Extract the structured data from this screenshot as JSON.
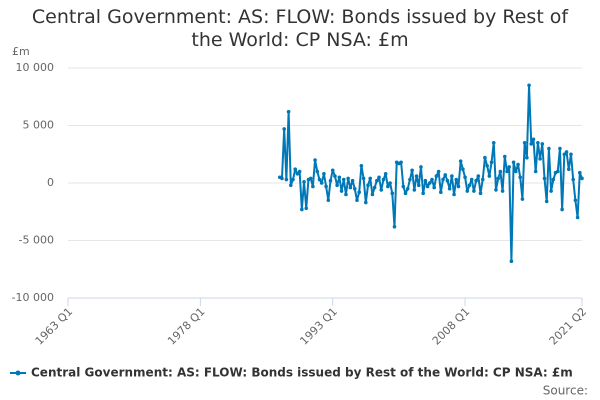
{
  "chart_data": {
    "type": "line",
    "title": "Central Government: AS: FLOW: Bonds issued by Rest of the World: CP NSA: £m",
    "y_label": "£m",
    "source": "Source:",
    "x": [
      "1987 Q1",
      "1987 Q2",
      "1987 Q3",
      "1987 Q4",
      "1988 Q1",
      "1988 Q2",
      "1988 Q3",
      "1988 Q4",
      "1989 Q1",
      "1989 Q2",
      "1989 Q3",
      "1989 Q4",
      "1990 Q1",
      "1990 Q2",
      "1990 Q3",
      "1990 Q4",
      "1991 Q1",
      "1991 Q2",
      "1991 Q3",
      "1991 Q4",
      "1992 Q1",
      "1992 Q2",
      "1992 Q3",
      "1992 Q4",
      "1993 Q1",
      "1993 Q2",
      "1993 Q3",
      "1993 Q4",
      "1994 Q1",
      "1994 Q2",
      "1994 Q3",
      "1994 Q4",
      "1995 Q1",
      "1995 Q2",
      "1995 Q3",
      "1995 Q4",
      "1996 Q1",
      "1996 Q2",
      "1996 Q3",
      "1996 Q4",
      "1997 Q1",
      "1997 Q2",
      "1997 Q3",
      "1997 Q4",
      "1998 Q1",
      "1998 Q2",
      "1998 Q3",
      "1998 Q4",
      "1999 Q1",
      "1999 Q2",
      "1999 Q3",
      "1999 Q4",
      "2000 Q1",
      "2000 Q2",
      "2000 Q3",
      "2000 Q4",
      "2001 Q1",
      "2001 Q2",
      "2001 Q3",
      "2001 Q4",
      "2002 Q1",
      "2002 Q2",
      "2002 Q3",
      "2002 Q4",
      "2003 Q1",
      "2003 Q2",
      "2003 Q3",
      "2003 Q4",
      "2004 Q1",
      "2004 Q2",
      "2004 Q3",
      "2004 Q4",
      "2005 Q1",
      "2005 Q2",
      "2005 Q3",
      "2005 Q4",
      "2006 Q1",
      "2006 Q2",
      "2006 Q3",
      "2006 Q4",
      "2007 Q1",
      "2007 Q2",
      "2007 Q3",
      "2007 Q4",
      "2008 Q1",
      "2008 Q2",
      "2008 Q3",
      "2008 Q4",
      "2009 Q1",
      "2009 Q2",
      "2009 Q3",
      "2009 Q4",
      "2010 Q1",
      "2010 Q2",
      "2010 Q3",
      "2010 Q4",
      "2011 Q1",
      "2011 Q2",
      "2011 Q3",
      "2011 Q4",
      "2012 Q1",
      "2012 Q2",
      "2012 Q3",
      "2012 Q4",
      "2013 Q1",
      "2013 Q2",
      "2013 Q3",
      "2013 Q4",
      "2014 Q1",
      "2014 Q2",
      "2014 Q3",
      "2014 Q4",
      "2015 Q1",
      "2015 Q2",
      "2015 Q3",
      "2015 Q4",
      "2016 Q1",
      "2016 Q2",
      "2016 Q3",
      "2016 Q4",
      "2017 Q1",
      "2017 Q2",
      "2017 Q3",
      "2017 Q4",
      "2018 Q1",
      "2018 Q2",
      "2018 Q3",
      "2018 Q4",
      "2019 Q1",
      "2019 Q2",
      "2019 Q3",
      "2019 Q4",
      "2020 Q1",
      "2020 Q2",
      "2020 Q3",
      "2020 Q4",
      "2021 Q1",
      "2021 Q2"
    ],
    "series": [
      {
        "name": "Central Government: AS: FLOW: Bonds issued by Rest of the World: CP NSA: £m",
        "color": "#0077b6",
        "values": [
          500,
          400,
          4700,
          300,
          6200,
          -200,
          300,
          1200,
          800,
          1000,
          -2300,
          100,
          -2200,
          300,
          400,
          -300,
          2000,
          1000,
          300,
          0,
          800,
          -300,
          -1500,
          200,
          1100,
          600,
          -200,
          500,
          -700,
          300,
          -1000,
          400,
          -400,
          200,
          -500,
          -1500,
          -800,
          1500,
          400,
          -1700,
          -200,
          400,
          -1000,
          -400,
          200,
          500,
          -600,
          300,
          800,
          -300,
          0,
          -900,
          -3800,
          1800,
          1700,
          1800,
          -300,
          -900,
          -500,
          300,
          1100,
          -600,
          600,
          -200,
          1400,
          -900,
          200,
          -300,
          0,
          300,
          -400,
          600,
          1000,
          -800,
          300,
          700,
          200,
          -500,
          600,
          -1000,
          300,
          -300,
          1900,
          1200,
          500,
          -700,
          -200,
          300,
          -700,
          200,
          600,
          -900,
          300,
          2200,
          1500,
          600,
          1800,
          3500,
          -600,
          400,
          1000,
          -700,
          2300,
          1000,
          1400,
          -6800,
          1800,
          1000,
          1600,
          500,
          -1400,
          3500,
          2200,
          8500,
          3400,
          3800,
          1000,
          3500,
          2100,
          3400,
          400,
          -1600,
          3000,
          -700,
          300,
          900,
          1000,
          3000,
          -2300,
          2500,
          2700,
          1200,
          2500,
          300,
          -1500,
          -3000,
          900,
          400
        ]
      }
    ],
    "xlim": [
      "1963 Q1",
      "2021 Q2"
    ],
    "xticks": [
      "1963 Q1",
      "1978 Q1",
      "1993 Q1",
      "2008 Q1",
      "2021 Q2"
    ],
    "ylim": [
      -10000,
      10000
    ],
    "yticks": [
      {
        "value": -10000,
        "label": "-10 000"
      },
      {
        "value": -5000,
        "label": "-5 000"
      },
      0,
      {
        "value": 5000,
        "label": "5 000"
      },
      {
        "value": 10000,
        "label": "10 000"
      }
    ],
    "grid": true
  }
}
